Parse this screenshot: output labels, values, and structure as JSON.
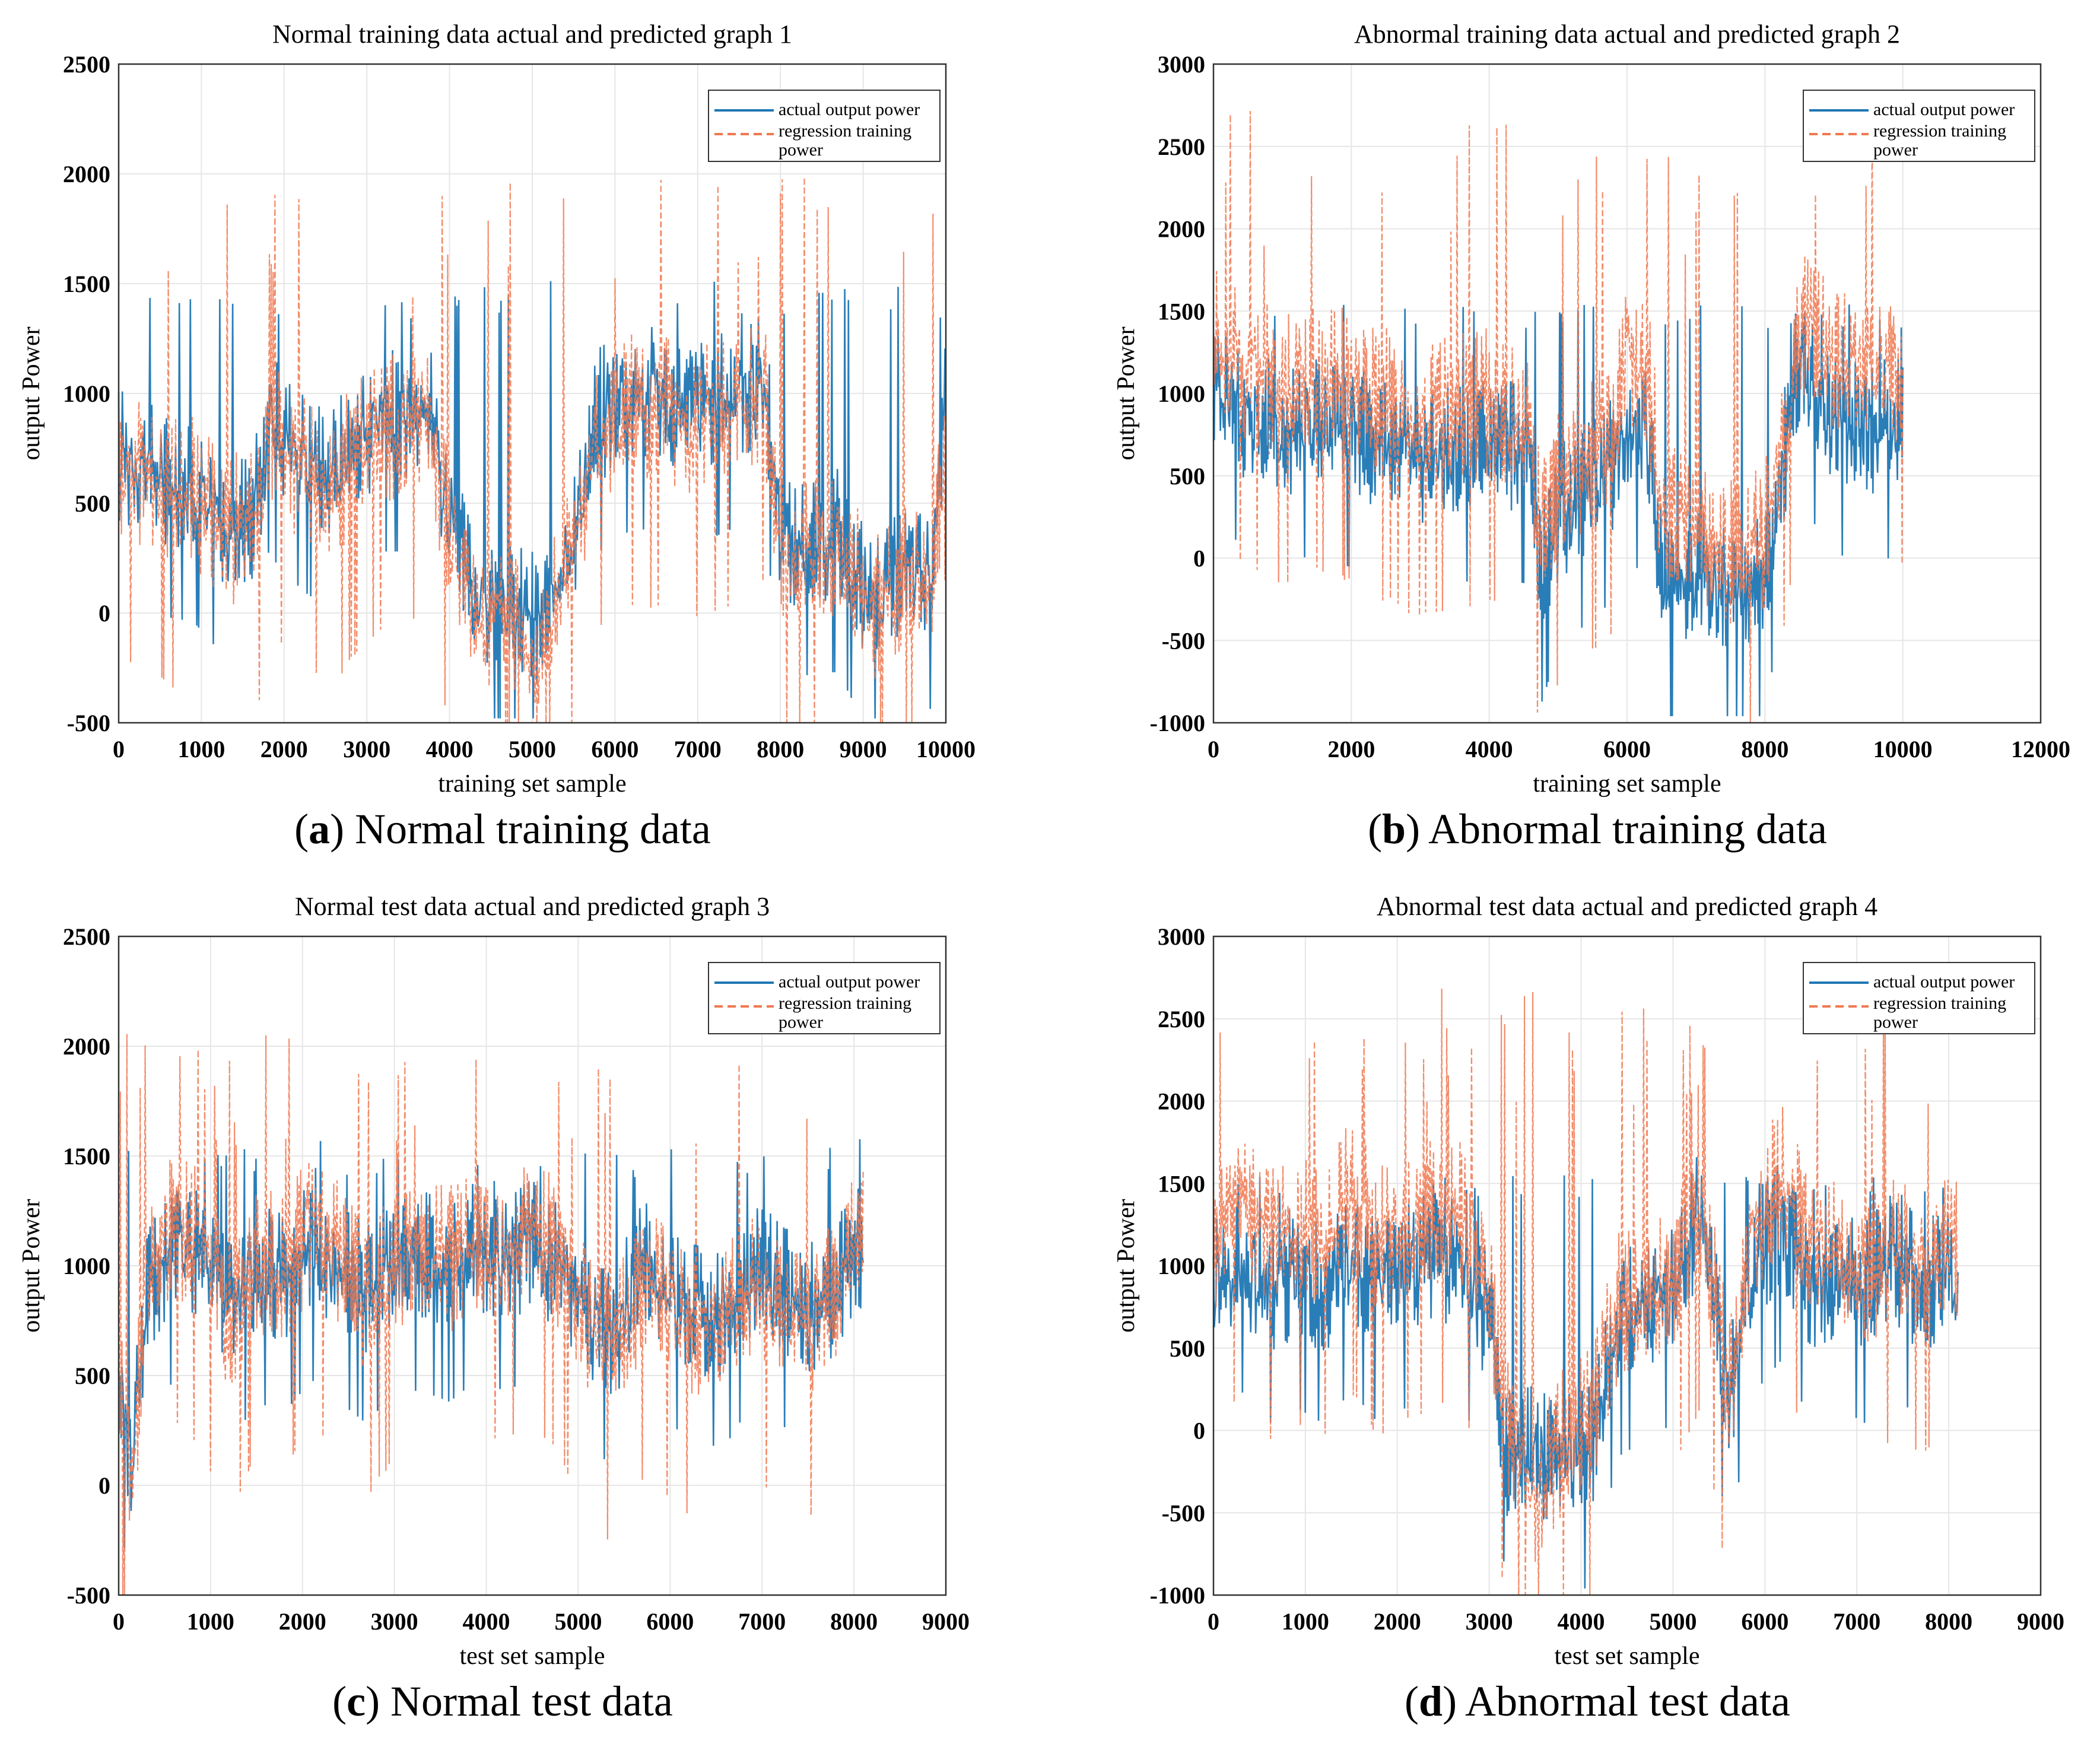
{
  "colors": {
    "actual": "#1f77b4",
    "predicted": "#f07850",
    "grid": "#e6e6e6",
    "axis": "#333333"
  },
  "chart_data": [
    {
      "type": "line",
      "title": "Normal training data actual and predicted graph  1",
      "xlabel": "training set sample",
      "ylabel": "output Power",
      "xlim": [
        0,
        10000
      ],
      "ylim": [
        -500,
        2500
      ],
      "xticks": [
        "0",
        "1000",
        "2000",
        "3000",
        "4000",
        "5000",
        "6000",
        "7000",
        "8000",
        "9000",
        "10000"
      ],
      "yticks": [
        "-500",
        "0",
        "500",
        "1000",
        "1500",
        "2000",
        "2500"
      ],
      "xtick_values": [
        0,
        1000,
        2000,
        3000,
        4000,
        5000,
        6000,
        7000,
        8000,
        9000,
        10000
      ],
      "ytick_values": [
        -500,
        0,
        500,
        1000,
        1500,
        2000,
        2500
      ],
      "legend": [
        "actual output power",
        "regression training",
        "power"
      ],
      "legend_position": "top-right",
      "caption": {
        "letter": "a",
        "open": "(",
        "close": ") ",
        "text": "Normal training data"
      },
      "series": [
        {
          "name": "actual output power",
          "style": "solid",
          "x": [
            0,
            300,
            600,
            900,
            1100,
            1300,
            1600,
            1750,
            1800,
            2000,
            2300,
            2600,
            2900,
            3200,
            3500,
            3700,
            3800,
            3900,
            4100,
            4300,
            4500,
            4800,
            5100,
            5300,
            5600,
            5700,
            5800,
            6000,
            6200,
            6500,
            6800,
            7100,
            7400,
            7700,
            7800,
            7900,
            8000,
            8100,
            8400,
            8700,
            8900,
            9100,
            9300,
            9500,
            9800,
            9950,
            10000
          ],
          "y": [
            820,
            780,
            700,
            680,
            600,
            500,
            550,
            700,
            1000,
            900,
            800,
            750,
            900,
            1000,
            1000,
            1100,
            1000,
            700,
            400,
            200,
            150,
            100,
            80,
            200,
            600,
            900,
            1000,
            1050,
            1100,
            1100,
            1050,
            1050,
            1100,
            1150,
            1200,
            800,
            500,
            400,
            450,
            450,
            300,
            150,
            200,
            300,
            250,
            700,
            1400
          ],
          "peaks": [
            1480,
            1480,
            1490,
            1500,
            1520,
            1550
          ]
        },
        {
          "name": "regression training power",
          "style": "dashed",
          "x": [
            0,
            300,
            600,
            900,
            1100,
            1300,
            1600,
            1750,
            1800,
            2000,
            2300,
            2600,
            2900,
            3200,
            3500,
            3700,
            3800,
            3900,
            4100,
            4300,
            4500,
            4800,
            5100,
            5300,
            5600,
            5700,
            5800,
            6000,
            6200,
            6500,
            6800,
            7100,
            7400,
            7700,
            7800,
            7900,
            8000,
            8100,
            8400,
            8700,
            8900,
            9100,
            9300,
            9500,
            9800,
            9950,
            10000
          ],
          "y": [
            800,
            760,
            690,
            660,
            580,
            480,
            530,
            650,
            950,
            850,
            750,
            700,
            850,
            950,
            950,
            1050,
            950,
            650,
            380,
            150,
            80,
            30,
            0,
            150,
            550,
            850,
            950,
            1000,
            1050,
            1050,
            1000,
            1000,
            1050,
            1100,
            1150,
            750,
            450,
            380,
            420,
            420,
            280,
            120,
            180,
            270,
            230,
            650,
            1300
          ],
          "peaks": [
            1750,
            1600,
            2000,
            1800,
            2100,
            1950
          ]
        }
      ]
    },
    {
      "type": "line",
      "title": "Abnormal training data actual and predicted graph 2",
      "xlabel": "training set sample",
      "ylabel": "output Power",
      "xlim": [
        0,
        12000
      ],
      "ylim": [
        -1000,
        3000
      ],
      "xticks": [
        "0",
        "2000",
        "4000",
        "6000",
        "8000",
        "10000",
        "12000"
      ],
      "yticks": [
        "-1000",
        "-500",
        "0",
        "500",
        "1000",
        "1500",
        "2000",
        "2500",
        "3000"
      ],
      "xtick_values": [
        0,
        2000,
        4000,
        6000,
        8000,
        10000,
        12000
      ],
      "ytick_values": [
        -1000,
        -500,
        0,
        500,
        1000,
        1500,
        2000,
        2500,
        3000
      ],
      "legend": [
        "actual output power",
        "regression training",
        "power"
      ],
      "legend_position": "top-right",
      "caption": {
        "letter": "b",
        "open": "(",
        "close": ") ",
        "text": "Abnormal training data"
      },
      "series": [
        {
          "name": "actual output power",
          "style": "solid",
          "x": [
            0,
            500,
            1000,
            1500,
            2000,
            2500,
            3000,
            3500,
            4000,
            4600,
            4700,
            5000,
            5500,
            5800,
            6000,
            6300,
            6500,
            7000,
            7500,
            8000,
            8300,
            8500,
            9000,
            9500,
            10000
          ],
          "y": [
            1200,
            1000,
            900,
            1000,
            900,
            800,
            750,
            800,
            850,
            800,
            0,
            400,
            600,
            700,
            900,
            900,
            0,
            0,
            0,
            0,
            800,
            1300,
            1000,
            900,
            1000
          ],
          "peaks": [
            1550,
            1550,
            1560,
            1560,
            1550,
            1560
          ]
        },
        {
          "name": "regression training power",
          "style": "dashed",
          "x": [
            0,
            500,
            1000,
            1500,
            2000,
            2500,
            3000,
            3500,
            4000,
            4600,
            4700,
            5000,
            5500,
            5800,
            6000,
            6300,
            6500,
            7000,
            7500,
            8000,
            8300,
            8500,
            9000,
            9500,
            10000
          ],
          "y": [
            1500,
            1300,
            1200,
            1300,
            1200,
            1100,
            1000,
            1050,
            1100,
            1000,
            400,
            600,
            800,
            900,
            1400,
            1300,
            400,
            300,
            200,
            300,
            1000,
            1600,
            1400,
            1300,
            1300
          ],
          "peaks": [
            2000,
            2300,
            2500,
            2800,
            2450,
            2400
          ]
        }
      ]
    },
    {
      "type": "line",
      "title": "Normal test data actual and predicted graph  3",
      "xlabel": "test set  sample",
      "ylabel": "output Power",
      "xlim": [
        0,
        9000
      ],
      "ylim": [
        -500,
        2500
      ],
      "xticks": [
        "0",
        "1000",
        "2000",
        "3000",
        "4000",
        "5000",
        "6000",
        "7000",
        "8000",
        "9000"
      ],
      "yticks": [
        "-500",
        "0",
        "500",
        "1000",
        "1500",
        "2000",
        "2500"
      ],
      "xtick_values": [
        0,
        1000,
        2000,
        3000,
        4000,
        5000,
        6000,
        7000,
        8000,
        9000
      ],
      "ytick_values": [
        -500,
        0,
        500,
        1000,
        1500,
        2000,
        2500
      ],
      "legend": [
        "actual output power",
        "regression training",
        "power"
      ],
      "legend_position": "top-right",
      "caption": {
        "letter": "c",
        "open": "(",
        "close": ") ",
        "text": "Normal test data"
      },
      "series": [
        {
          "name": "actual output power",
          "style": "solid",
          "x": [
            0,
            150,
            300,
            600,
            900,
            1200,
            1500,
            1800,
            2100,
            2400,
            2700,
            3000,
            3300,
            3600,
            3900,
            4200,
            4500,
            4800,
            5100,
            5400,
            5700,
            6000,
            6300,
            6600,
            6900,
            7200,
            7500,
            7800,
            8100
          ],
          "y": [
            600,
            200,
            1000,
            1200,
            1150,
            900,
            1100,
            1050,
            1200,
            1100,
            1000,
            1150,
            1150,
            1100,
            1200,
            1150,
            1200,
            1100,
            900,
            800,
            1100,
            1000,
            900,
            900,
            1100,
            1000,
            900,
            1000,
            1200
          ],
          "peaks": [
            1540,
            1550,
            1580,
            1580,
            1560,
            1500
          ]
        },
        {
          "name": "regression training power",
          "style": "dashed",
          "x": [
            0,
            150,
            300,
            600,
            900,
            1200,
            1500,
            1800,
            2100,
            2400,
            2700,
            3000,
            3300,
            3600,
            3900,
            4200,
            4500,
            4800,
            5100,
            5400,
            5700,
            6000,
            6300,
            6600,
            6900,
            7200,
            7500,
            7800,
            8100
          ],
          "y": [
            550,
            150,
            1050,
            1300,
            1200,
            850,
            1150,
            1100,
            1300,
            1150,
            950,
            1150,
            1200,
            1150,
            1250,
            1200,
            1300,
            1150,
            850,
            750,
            1050,
            950,
            850,
            850,
            1050,
            950,
            850,
            1000,
            1300
          ],
          "peaks": [
            1950,
            1950,
            1700,
            2100,
            2100,
            2000
          ]
        }
      ]
    },
    {
      "type": "line",
      "title": "Abnormal test data actual and predicted graph 4",
      "xlabel": "test set  sample",
      "ylabel": "output Power",
      "xlim": [
        0,
        9000
      ],
      "ylim": [
        -1000,
        3000
      ],
      "xticks": [
        "0",
        "1000",
        "2000",
        "3000",
        "4000",
        "5000",
        "6000",
        "7000",
        "8000",
        "9000"
      ],
      "yticks": [
        "-1000",
        "-500",
        "0",
        "500",
        "1000",
        "1500",
        "2000",
        "2500",
        "3000"
      ],
      "xtick_values": [
        0,
        1000,
        2000,
        3000,
        4000,
        5000,
        6000,
        7000,
        8000,
        9000
      ],
      "ytick_values": [
        -1000,
        -500,
        0,
        500,
        1000,
        1500,
        2000,
        2500,
        3000
      ],
      "legend": [
        "actual output power",
        "regression training",
        "power"
      ],
      "legend_position": "top-right",
      "caption": {
        "letter": "d",
        "open": "(",
        "close": ") ",
        "text": "Abnormal test data"
      },
      "series": [
        {
          "name": "actual output power",
          "style": "solid",
          "x": [
            0,
            300,
            600,
            900,
            1200,
            1500,
            1800,
            2100,
            2400,
            2700,
            3000,
            3200,
            3500,
            3800,
            4100,
            4400,
            4700,
            5000,
            5300,
            5600,
            5900,
            6200,
            6500,
            6800,
            7100,
            7400,
            7700,
            8000,
            8100
          ],
          "y": [
            1000,
            1200,
            1000,
            1100,
            1000,
            1200,
            1000,
            1100,
            1200,
            1100,
            800,
            0,
            0,
            0,
            0,
            800,
            900,
            1000,
            1500,
            300,
            1200,
            1400,
            1000,
            1100,
            1000,
            1200,
            1000,
            1100,
            1000
          ],
          "peaks": [
            1550,
            1550,
            1550,
            1550,
            1550,
            1560
          ]
        },
        {
          "name": "regression training power",
          "style": "dashed",
          "x": [
            0,
            300,
            600,
            900,
            1200,
            1500,
            1800,
            2100,
            2400,
            2700,
            3000,
            3200,
            3500,
            3800,
            4100,
            4400,
            4700,
            5000,
            5300,
            5600,
            5900,
            6200,
            6500,
            6800,
            7100,
            7400,
            7700,
            8000,
            8100
          ],
          "y": [
            1300,
            1600,
            1300,
            1400,
            1300,
            1600,
            1300,
            1400,
            1500,
            1500,
            1000,
            200,
            -200,
            100,
            200,
            900,
            1000,
            1100,
            1500,
            400,
            1400,
            1700,
            1200,
            1200,
            1100,
            1300,
            1200,
            1300,
            1200
          ],
          "peaks": [
            2450,
            2500,
            2550,
            2800,
            2200,
            2200
          ]
        }
      ]
    }
  ]
}
